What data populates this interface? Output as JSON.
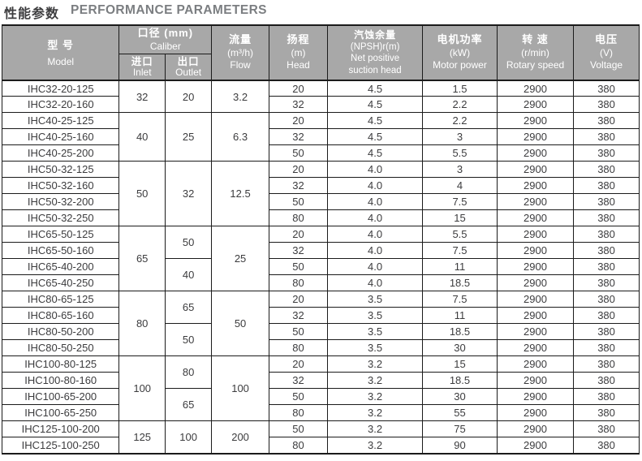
{
  "page": {
    "title_zh": "性能参数",
    "title_en": "PERFORMANCE PARAMETERS"
  },
  "colors": {
    "header_bg": "#a8a8a8",
    "header_text": "#ffffff",
    "border": "#1b1b1b",
    "data_text": "#3c3c3e",
    "title_zh_color": "#3d3d3f",
    "title_en_color": "#7b7e81"
  },
  "table": {
    "header": {
      "model": {
        "zh": "型 号",
        "en": "Model"
      },
      "caliber": {
        "zh": "口径 (mm)",
        "en": "Caliber",
        "inlet": {
          "zh": "进口",
          "en": "Inlet"
        },
        "outlet": {
          "zh": "出口",
          "en": "Outlet"
        }
      },
      "flow": {
        "zh": "流量",
        "unit": "(m³/h)",
        "en": "Flow"
      },
      "head": {
        "zh": "扬程",
        "unit": "(m)",
        "en": "Head"
      },
      "npsh": {
        "zh": "汽蚀余量",
        "unit": "(NPSH)r(m)",
        "en1": "Net positive",
        "en2": "suction head"
      },
      "motor_power": {
        "zh": "电机功率",
        "unit": "(kW)",
        "en": "Motor power"
      },
      "rotary_speed": {
        "zh": "转 速",
        "unit": "(r/min)",
        "en": "Rotary speed"
      },
      "voltage": {
        "zh": "电压",
        "unit": "(V)",
        "en": "Voltage"
      }
    },
    "groups": [
      {
        "inlet": "32",
        "flow": "3.2",
        "outlets": [
          {
            "value": "20",
            "span": 2
          }
        ],
        "rows": [
          {
            "model": "IHC32-20-125",
            "head": "20",
            "npsh": "4.5",
            "power": "1.5",
            "speed": "2900",
            "voltage": "380"
          },
          {
            "model": "IHC32-20-160",
            "head": "32",
            "npsh": "4.5",
            "power": "2.2",
            "speed": "2900",
            "voltage": "380"
          }
        ]
      },
      {
        "inlet": "40",
        "flow": "6.3",
        "outlets": [
          {
            "value": "25",
            "span": 3
          }
        ],
        "rows": [
          {
            "model": "IHC40-25-125",
            "head": "20",
            "npsh": "4.5",
            "power": "2.2",
            "speed": "2900",
            "voltage": "380"
          },
          {
            "model": "IHC40-25-160",
            "head": "32",
            "npsh": "4.5",
            "power": "3",
            "speed": "2900",
            "voltage": "380"
          },
          {
            "model": "IHC40-25-200",
            "head": "50",
            "npsh": "4.5",
            "power": "5.5",
            "speed": "2900",
            "voltage": "380"
          }
        ]
      },
      {
        "inlet": "50",
        "flow": "12.5",
        "outlets": [
          {
            "value": "32",
            "span": 4
          }
        ],
        "rows": [
          {
            "model": "IHC50-32-125",
            "head": "20",
            "npsh": "4.0",
            "power": "3",
            "speed": "2900",
            "voltage": "380"
          },
          {
            "model": "IHC50-32-160",
            "head": "32",
            "npsh": "4.0",
            "power": "4",
            "speed": "2900",
            "voltage": "380"
          },
          {
            "model": "IHC50-32-200",
            "head": "50",
            "npsh": "4.0",
            "power": "7.5",
            "speed": "2900",
            "voltage": "380"
          },
          {
            "model": "IHC50-32-250",
            "head": "80",
            "npsh": "4.0",
            "power": "15",
            "speed": "2900",
            "voltage": "380"
          }
        ]
      },
      {
        "inlet": "65",
        "flow": "25",
        "outlets": [
          {
            "value": "50",
            "span": 2
          },
          {
            "value": "40",
            "span": 2
          }
        ],
        "rows": [
          {
            "model": "IHC65-50-125",
            "head": "20",
            "npsh": "4.0",
            "power": "5.5",
            "speed": "2900",
            "voltage": "380"
          },
          {
            "model": "IHC65-50-160",
            "head": "32",
            "npsh": "4.0",
            "power": "7.5",
            "speed": "2900",
            "voltage": "380"
          },
          {
            "model": "IHC65-40-200",
            "head": "50",
            "npsh": "4.0",
            "power": "11",
            "speed": "2900",
            "voltage": "380"
          },
          {
            "model": "IHC65-40-250",
            "head": "80",
            "npsh": "4.0",
            "power": "18.5",
            "speed": "2900",
            "voltage": "380"
          }
        ]
      },
      {
        "inlet": "80",
        "flow": "50",
        "outlets": [
          {
            "value": "65",
            "span": 2
          },
          {
            "value": "50",
            "span": 2
          }
        ],
        "rows": [
          {
            "model": "IHC80-65-125",
            "head": "20",
            "npsh": "3.5",
            "power": "7.5",
            "speed": "2900",
            "voltage": "380"
          },
          {
            "model": "IHC80-65-160",
            "head": "32",
            "npsh": "3.5",
            "power": "11",
            "speed": "2900",
            "voltage": "380"
          },
          {
            "model": "IHC80-50-200",
            "head": "50",
            "npsh": "3.5",
            "power": "18.5",
            "speed": "2900",
            "voltage": "380"
          },
          {
            "model": "IHC80-50-250",
            "head": "80",
            "npsh": "3.5",
            "power": "30",
            "speed": "2900",
            "voltage": "380"
          }
        ]
      },
      {
        "inlet": "100",
        "flow": "100",
        "outlets": [
          {
            "value": "80",
            "span": 2
          },
          {
            "value": "65",
            "span": 2
          }
        ],
        "rows": [
          {
            "model": "IHC100-80-125",
            "head": "20",
            "npsh": "3.2",
            "power": "15",
            "speed": "2900",
            "voltage": "380"
          },
          {
            "model": "IHC100-80-160",
            "head": "32",
            "npsh": "3.2",
            "power": "18.5",
            "speed": "2900",
            "voltage": "380"
          },
          {
            "model": "IHC100-65-200",
            "head": "50",
            "npsh": "3.2",
            "power": "30",
            "speed": "2900",
            "voltage": "380"
          },
          {
            "model": "IHC100-65-250",
            "head": "80",
            "npsh": "3.2",
            "power": "55",
            "speed": "2900",
            "voltage": "380"
          }
        ]
      },
      {
        "inlet": "125",
        "flow": "200",
        "outlets": [
          {
            "value": "100",
            "span": 2
          }
        ],
        "rows": [
          {
            "model": "IHC125-100-200",
            "head": "50",
            "npsh": "3.2",
            "power": "75",
            "speed": "2900",
            "voltage": "380"
          },
          {
            "model": "IHC125-100-250",
            "head": "80",
            "npsh": "3.2",
            "power": "90",
            "speed": "2900",
            "voltage": "380"
          }
        ]
      }
    ]
  }
}
